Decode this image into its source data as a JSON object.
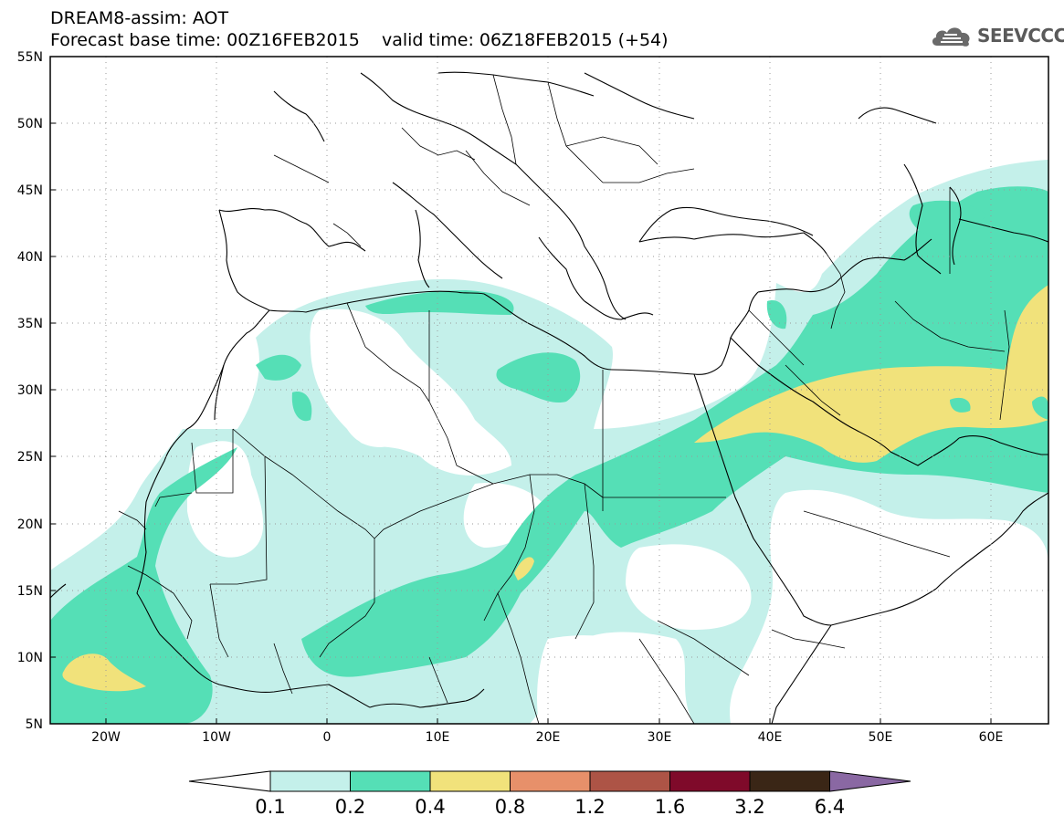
{
  "header": {
    "line1": "DREAM8-assim: AOT",
    "line2": "Forecast base time: 00Z16FEB2015    valid time: 06Z18FEB2015 (+54)",
    "logo_text": "SEEVCCC"
  },
  "axes": {
    "lat_ticks": [
      "55N",
      "50N",
      "45N",
      "40N",
      "35N",
      "30N",
      "25N",
      "20N",
      "15N",
      "10N",
      "5N"
    ],
    "lon_ticks": [
      "20W",
      "10W",
      "0",
      "10E",
      "20E",
      "30E",
      "40E",
      "50E",
      "60E"
    ]
  },
  "colorbar": {
    "labels": [
      "0.1",
      "0.2",
      "0.4",
      "0.8",
      "1.2",
      "1.6",
      "3.2",
      "6.4"
    ],
    "colors": [
      "#ffffff",
      "#c4f0ea",
      "#55dfb6",
      "#f1e27b",
      "#e7906a",
      "#ad5446",
      "#7f0a2a",
      "#3a2616",
      "#8a68a3"
    ]
  },
  "legend_colors": {
    "c1": "#c4f0ea",
    "c2": "#55dfb6",
    "c3": "#f1e27b"
  }
}
